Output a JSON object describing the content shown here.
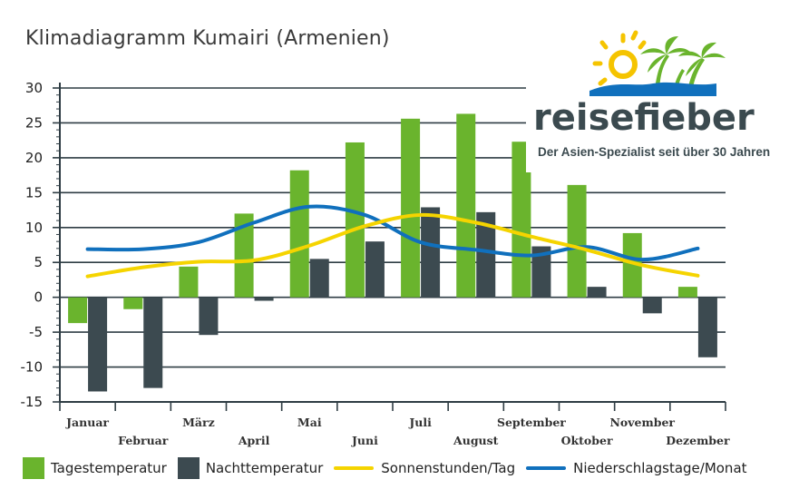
{
  "chart_data": {
    "type": "bar",
    "title": "Klimadiagramm Kumairi (Armenien)",
    "categories": [
      "Januar",
      "Februar",
      "März",
      "April",
      "Mai",
      "Juni",
      "Juli",
      "August",
      "September",
      "Oktober",
      "November",
      "Dezember"
    ],
    "ylim": [
      -15,
      30
    ],
    "yticks": [
      30,
      25,
      20,
      15,
      10,
      5,
      0,
      -5,
      -10,
      -15
    ],
    "grid": true,
    "legend_position": "bottom",
    "series": [
      {
        "name": "Tagestemperatur",
        "kind": "bar",
        "color": "#6ab42d",
        "values": [
          -3.7,
          -1.7,
          4.4,
          12.0,
          18.2,
          22.2,
          25.6,
          26.3,
          22.3,
          16.1,
          9.2,
          1.5
        ]
      },
      {
        "name": "Nachttemperatur",
        "kind": "bar",
        "color": "#3c4a50",
        "values": [
          -13.5,
          -13.0,
          -5.4,
          -0.5,
          5.5,
          8.0,
          12.9,
          12.2,
          7.3,
          1.5,
          -2.3,
          -8.6
        ]
      },
      {
        "name": "Sonnenstunden/Tag",
        "kind": "line",
        "color": "#f5d400",
        "values": [
          3,
          4.3,
          5.1,
          5.3,
          7.4,
          10.2,
          11.8,
          10.7,
          8.7,
          6.8,
          4.6,
          3.1
        ]
      },
      {
        "name": "Niederschlagstage/Monat",
        "kind": "line",
        "color": "#1070bd",
        "values": [
          6.9,
          6.9,
          7.9,
          10.7,
          13.0,
          11.8,
          7.9,
          6.8,
          6.0,
          7.2,
          5.4,
          7.0
        ]
      }
    ]
  },
  "brand": {
    "wordmark": "reisefieber",
    "tagline": "Der Asien-Spezialist seit über 30 Jahren",
    "colors": {
      "sun": "#f5c400",
      "palm": "#6ab42d",
      "sea": "#1070bd",
      "text": "#3b4a4f"
    }
  }
}
